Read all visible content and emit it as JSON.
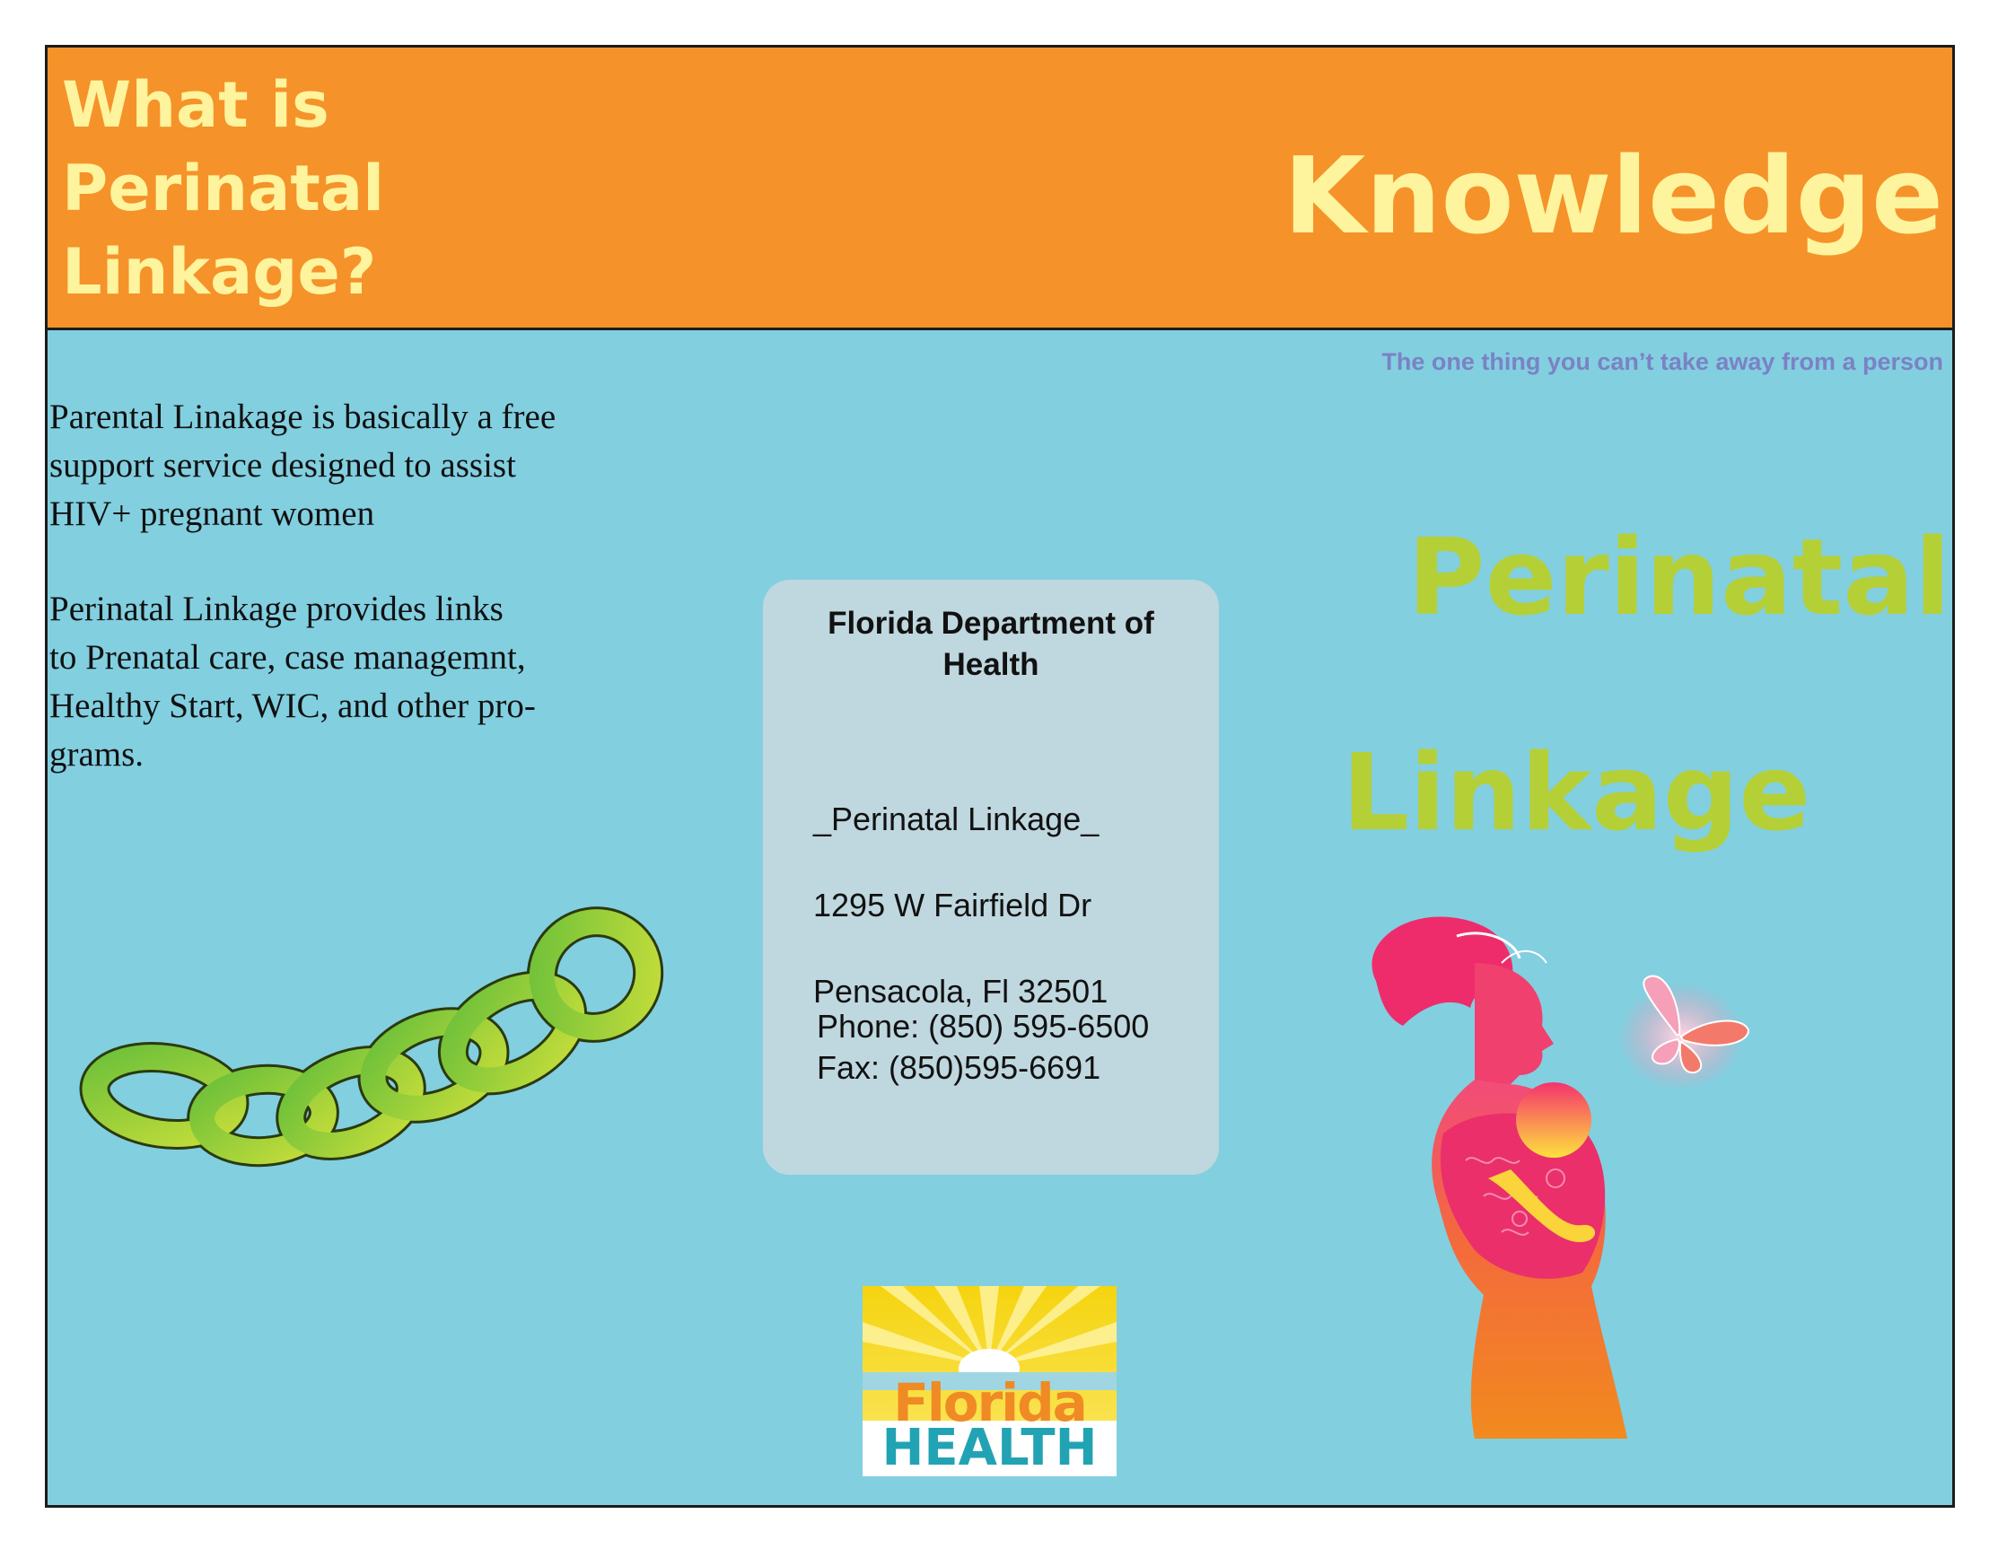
{
  "header": {
    "question_title": "What is\nPerinatal\nLinkage?",
    "right_title": "Knowledge"
  },
  "tagline": "The one thing you can’t take away from a person",
  "left_panel": {
    "paragraph_1": "Parental Linakage is basically a free\nsupport service designed to assist\nHIV+ pregnant women",
    "paragraph_2": "Perinatal Linkage provides links\nto Prenatal care, case managemnt,\nHealthy Start, WIC, and other pro-\ngrams."
  },
  "contact": {
    "organization": "Florida Department of\nHealth",
    "program": "_Perinatal Linkage_",
    "street": "1295 W Fairfield Dr",
    "city": "Pensacola, Fl 32501",
    "phone": "Phone: (850) 595-6500",
    "fax": "Fax: (850)595-6691"
  },
  "cover_title": {
    "line_1": "Perinatal",
    "line_2": "Linkage"
  },
  "logo": {
    "word_1": "Florida",
    "word_2": "HEALTH"
  },
  "colors": {
    "header_orange": "#f5922a",
    "title_yellow": "#fdf49d",
    "panel_blue": "#82cfe0",
    "card_gray_blue": "#bfd7df",
    "accent_green": "#b5cf36",
    "tagline_purple": "#7b82c4"
  },
  "icons": [
    "chain-illustration",
    "mother-and-baby-illustration",
    "butterfly-icon",
    "florida-health-logo"
  ]
}
